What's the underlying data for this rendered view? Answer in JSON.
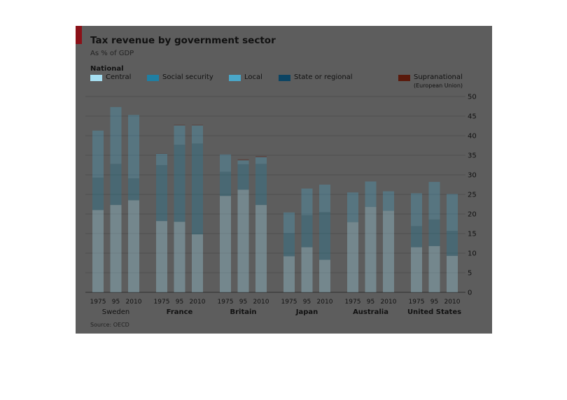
{
  "header": {
    "title": "Tax revenue by government sector",
    "subtitle": "As % of GDP",
    "legend_group_label": "National"
  },
  "legend": [
    {
      "label": "Central",
      "sub": "",
      "color": "#a6dff2"
    },
    {
      "label": "Social security",
      "sub": "",
      "color": "#1f7fa3"
    },
    {
      "label": "Local",
      "sub": "",
      "color": "#4aa7c9"
    },
    {
      "label": "State or regional",
      "sub": "",
      "color": "#0c4463"
    },
    {
      "label": "Supranational",
      "sub": "(European Union)",
      "color": "#5a1a0c"
    }
  ],
  "source": "Source: OECD",
  "chart_data": {
    "type": "bar",
    "stacked": true,
    "ylim": [
      0,
      50
    ],
    "yticks": [
      0,
      5,
      10,
      15,
      20,
      25,
      30,
      35,
      40,
      45,
      50
    ],
    "grid": true,
    "groups": [
      {
        "name": "Sweden",
        "years": [
          "1975",
          "95",
          "2010"
        ]
      },
      {
        "name": "France",
        "years": [
          "1975",
          "95",
          "2010"
        ]
      },
      {
        "name": "Britain",
        "years": [
          "1975",
          "95",
          "2010"
        ]
      },
      {
        "name": "Japan",
        "years": [
          "1975",
          "95",
          "2010"
        ]
      },
      {
        "name": "Australia",
        "years": [
          "1975",
          "95",
          "2010"
        ]
      },
      {
        "name": "United States",
        "years": [
          "1975",
          "95",
          "2010"
        ]
      }
    ],
    "series": [
      {
        "name": "Central",
        "color": "#a6dff2",
        "values": [
          [
            21.0,
            22.3,
            23.5
          ],
          [
            18.2,
            18.0,
            14.8
          ],
          [
            24.6,
            26.2,
            22.3
          ],
          [
            9.2,
            11.5,
            8.3
          ],
          [
            17.9,
            21.8,
            20.8
          ],
          [
            11.5,
            11.8,
            9.3
          ]
        ]
      },
      {
        "name": "Social security",
        "color": "#1f7fa3",
        "values": [
          [
            8.3,
            10.5,
            5.6
          ],
          [
            14.3,
            19.7,
            23.2
          ],
          [
            6.2,
            6.5,
            10.5
          ],
          [
            5.9,
            8.2,
            12.2
          ],
          [
            0,
            0,
            0
          ],
          [
            5.4,
            6.8,
            6.4
          ]
        ]
      },
      {
        "name": "Local",
        "color": "#4aa7c9",
        "values": [
          [
            12.0,
            14.5,
            16.2
          ],
          [
            2.9,
            4.9,
            4.6
          ],
          [
            4.4,
            1.0,
            1.7
          ],
          [
            5.3,
            6.8,
            7.0
          ],
          [
            7.6,
            6.5,
            5.0
          ],
          [
            8.4,
            9.6,
            9.4
          ]
        ]
      },
      {
        "name": "State or regional",
        "color": "#0c4463",
        "values": [
          [
            0,
            0,
            0
          ],
          [
            0,
            0,
            0
          ],
          [
            0,
            0,
            0
          ],
          [
            0,
            0,
            0
          ],
          [
            0,
            0,
            0
          ],
          [
            0,
            0,
            0
          ]
        ]
      },
      {
        "name": "Supranational",
        "color": "#5a1a0c",
        "values": [
          [
            0,
            0,
            0
          ],
          [
            0.1,
            0.2,
            0.2
          ],
          [
            0,
            0.3,
            0.3
          ],
          [
            0,
            0,
            0
          ],
          [
            0,
            0,
            0
          ],
          [
            0,
            0,
            0
          ]
        ]
      }
    ]
  }
}
